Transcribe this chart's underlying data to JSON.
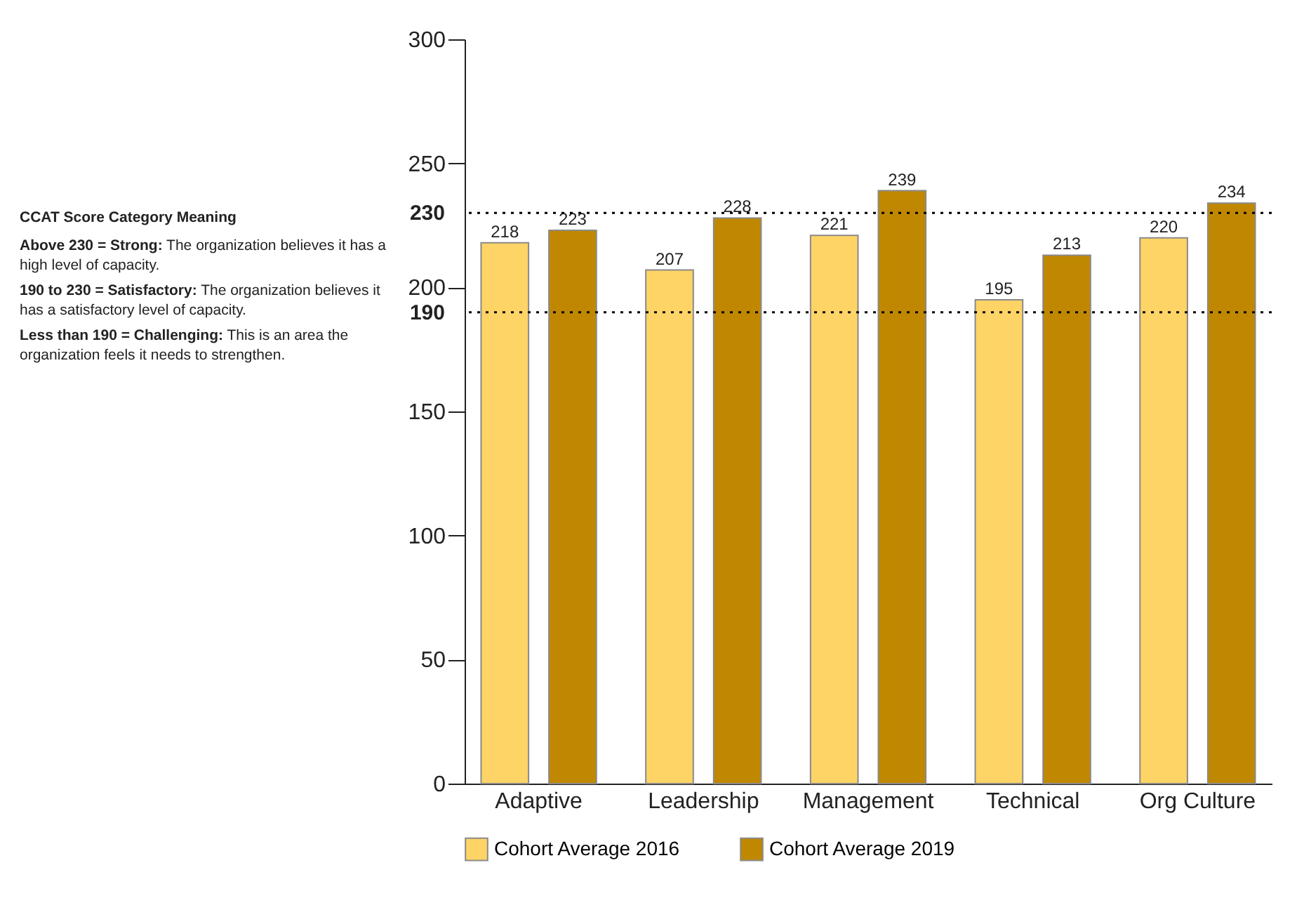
{
  "chart_data": {
    "type": "bar",
    "categories": [
      "Adaptive",
      "Leadership",
      "Management",
      "Technical",
      "Org Culture"
    ],
    "series": [
      {
        "name": "Cohort Average 2016",
        "color": "#ffd466",
        "values": [
          218,
          207,
          221,
          195,
          220
        ]
      },
      {
        "name": "Cohort Average 2019",
        "color": "#c08800",
        "values": [
          223,
          228,
          239,
          213,
          234
        ]
      }
    ],
    "ylim": [
      0,
      300
    ],
    "yticks": [
      0,
      50,
      100,
      150,
      200,
      250,
      300
    ],
    "grid": false,
    "legend": "bottom",
    "data_labels": true,
    "ref_lines": [
      {
        "axis": "y",
        "value": 230,
        "label": "230",
        "line_style": "dotted"
      },
      {
        "axis": "y",
        "value": 190,
        "label": "190",
        "line_style": "dotted"
      }
    ],
    "annotations": [
      "CCAT Score Category Meaning",
      "Above 230 = Strong: The organization believes it has a high level of capacity.",
      "190 to 230 = Satisfactory: The organization believes it has a satisfactory level of capacity.",
      "Less than 190 = Challenging: This is an area the organization feels it needs to strengthen."
    ]
  }
}
